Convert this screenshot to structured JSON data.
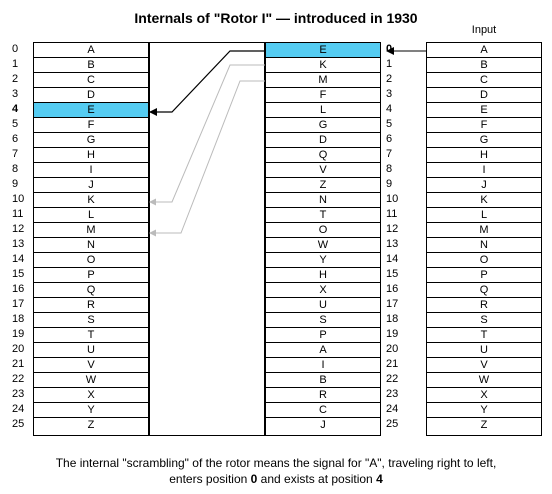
{
  "title": "Internals of \"Rotor I\" — introduced in 1930",
  "input_label": "Input",
  "positions": [
    "0",
    "1",
    "2",
    "3",
    "4",
    "5",
    "6",
    "7",
    "8",
    "9",
    "10",
    "11",
    "12",
    "13",
    "14",
    "15",
    "16",
    "17",
    "18",
    "19",
    "20",
    "21",
    "22",
    "23",
    "24",
    "25"
  ],
  "left_letters": [
    "A",
    "B",
    "C",
    "D",
    "E",
    "F",
    "G",
    "H",
    "I",
    "J",
    "K",
    "L",
    "M",
    "N",
    "O",
    "P",
    "Q",
    "R",
    "S",
    "T",
    "U",
    "V",
    "W",
    "X",
    "Y",
    "Z"
  ],
  "rotor_wiring": [
    "E",
    "K",
    "M",
    "F",
    "L",
    "G",
    "D",
    "Q",
    "V",
    "Z",
    "N",
    "T",
    "O",
    "W",
    "Y",
    "H",
    "X",
    "U",
    "S",
    "P",
    "A",
    "I",
    "B",
    "R",
    "C",
    "J"
  ],
  "input_letters": [
    "A",
    "B",
    "C",
    "D",
    "E",
    "F",
    "G",
    "H",
    "I",
    "J",
    "K",
    "L",
    "M",
    "N",
    "O",
    "P",
    "Q",
    "R",
    "S",
    "T",
    "U",
    "V",
    "W",
    "X",
    "Y",
    "Z"
  ],
  "highlight": {
    "entry_position": 0,
    "exit_position": 4,
    "color": "#55ccf2"
  },
  "caption": {
    "line1": "The internal \"scrambling\" of the rotor means the signal for \"A\", traveling right to left,",
    "line2_prefix": "enters position ",
    "line2_entry": "0",
    "line2_middle": " and exists at position ",
    "line2_exit": "4"
  }
}
